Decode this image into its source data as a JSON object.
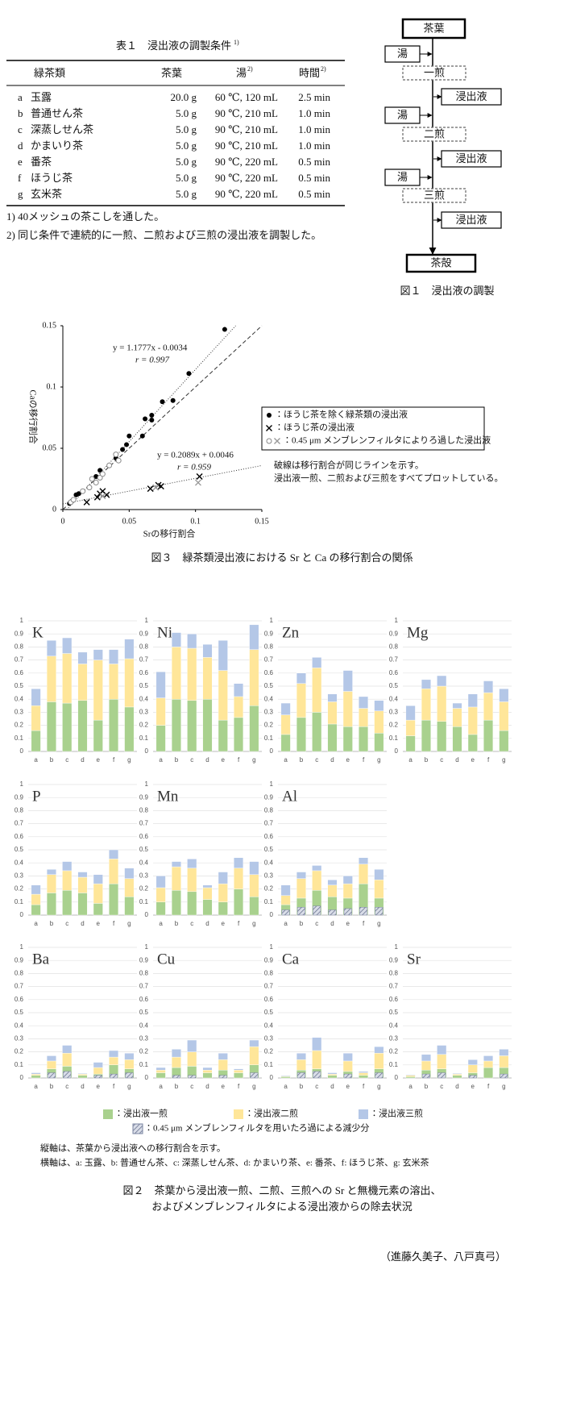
{
  "table": {
    "caption": "表１　浸出液の調製条件",
    "caption_note": "1)",
    "headers": [
      {
        "text": "緑茶類"
      },
      {
        "text": "茶葉"
      },
      {
        "text": "湯",
        "note": "2)"
      },
      {
        "text": "時間",
        "note": "2)"
      }
    ],
    "rows": [
      [
        "a",
        "玉露",
        "20.0 g",
        "60 ℃, 120 mL",
        "2.5 min"
      ],
      [
        "b",
        "普通せん茶",
        "5.0 g",
        "90 ℃, 210 mL",
        "1.0 min"
      ],
      [
        "c",
        "深蒸しせん茶",
        "5.0 g",
        "90 ℃, 210 mL",
        "1.0 min"
      ],
      [
        "d",
        "かまいり茶",
        "5.0 g",
        "90 ℃, 210 mL",
        "1.0 min"
      ],
      [
        "e",
        "番茶",
        "5.0 g",
        "90 ℃, 220 mL",
        "0.5 min"
      ],
      [
        "f",
        "ほうじ茶",
        "5.0 g",
        "90 ℃, 220 mL",
        "0.5 min"
      ],
      [
        "g",
        "玄米茶",
        "5.0 g",
        "90 ℃, 220 mL",
        "0.5 min"
      ]
    ],
    "notes": [
      "1) 40メッシュの茶こしを通した。",
      "2) 同じ条件で連続的に一煎、二煎および三煎の浸出液を調製した。"
    ]
  },
  "diagram": {
    "nodes": [
      "茶葉",
      "湯",
      "一煎",
      "浸出液",
      "湯",
      "二煎",
      "浸出液",
      "湯",
      "三煎",
      "浸出液",
      "茶殻"
    ],
    "caption": "図１　浸出液の調製"
  },
  "chart_data": [
    {
      "type": "scatter",
      "caption": "図３　緑茶類浸出液における Sr と Ca の移行割合の関係",
      "x_label": "Srの移行割合",
      "y_label": "Caの移行割合",
      "xlim": [
        0,
        0.15
      ],
      "ylim": [
        0,
        0.15
      ],
      "xticks": [
        0,
        0.05,
        0.1,
        0.15
      ],
      "yticks": [
        0,
        0.05,
        0.1,
        0.15
      ],
      "series": [
        {
          "name": "：ほうじ茶を除く緑茶類の浸出液",
          "marker": "circle",
          "color": "#000000",
          "x": [
            0.005,
            0.007,
            0.01,
            0.012,
            0.025,
            0.028,
            0.04,
            0.045,
            0.048,
            0.05,
            0.06,
            0.062,
            0.067,
            0.067,
            0.075,
            0.083,
            0.095,
            0.122
          ],
          "y": [
            0.005,
            0.007,
            0.012,
            0.013,
            0.027,
            0.032,
            0.042,
            0.049,
            0.053,
            0.06,
            0.06,
            0.074,
            0.077,
            0.073,
            0.088,
            0.089,
            0.111,
            0.147
          ]
        },
        {
          "name": "：ほうじ茶の浸出液",
          "marker": "cross",
          "color": "#000000",
          "x": [
            0.018,
            0.026,
            0.028,
            0.03,
            0.033,
            0.066,
            0.072,
            0.074,
            0.103
          ],
          "y": [
            0.006,
            0.01,
            0.013,
            0.015,
            0.012,
            0.017,
            0.02,
            0.019,
            0.027
          ]
        },
        {
          "name": "：0.45 μm メンブレンフィルタによりろ過した浸出液",
          "marker": "circle-open",
          "color": "#888888",
          "x": [
            0.006,
            0.008,
            0.015,
            0.02,
            0.022,
            0.025,
            0.028,
            0.03,
            0.035,
            0.04,
            0.042
          ],
          "y": [
            0.006,
            0.008,
            0.015,
            0.018,
            0.025,
            0.022,
            0.026,
            0.029,
            0.036,
            0.045,
            0.04
          ]
        },
        {
          "marker": "cross",
          "color": "#999999",
          "x": [
            0.03,
            0.07,
            0.102
          ],
          "y": [
            0.011,
            0.018,
            0.022
          ]
        }
      ],
      "fits": [
        {
          "equation": "y = 1.1777x - 0.0034",
          "r": "r = 0.997",
          "slope": 1.1777,
          "intercept": -0.0034
        },
        {
          "equation": "y = 0.2089x + 0.0046",
          "r": "r = 0.959",
          "slope": 0.2089,
          "intercept": 0.0046
        }
      ],
      "identity_line": true,
      "notes": [
        "破線は移行割合が同じラインを示す。",
        "浸出液一煎、二煎および三煎をすべてプロットしている。"
      ]
    },
    {
      "type": "bar",
      "stacked": true,
      "title": "K",
      "categories": [
        "a",
        "b",
        "c",
        "d",
        "e",
        "f",
        "g"
      ],
      "ylim": [
        0,
        1
      ],
      "yticks": [
        0,
        0.1,
        0.2,
        0.3,
        0.4,
        0.5,
        0.6,
        0.7,
        0.8,
        0.9,
        1
      ],
      "grid": true,
      "series": [
        {
          "color": "#a9d18e",
          "values": [
            0.16,
            0.38,
            0.37,
            0.39,
            0.24,
            0.4,
            0.34
          ]
        },
        {
          "color": "#ffe699",
          "values": [
            0.19,
            0.35,
            0.38,
            0.28,
            0.46,
            0.27,
            0.37
          ]
        },
        {
          "color": "#b4c7e7",
          "values": [
            0.13,
            0.12,
            0.12,
            0.09,
            0.08,
            0.11,
            0.15
          ]
        }
      ]
    },
    {
      "type": "bar",
      "stacked": true,
      "title": "Ni",
      "categories": [
        "a",
        "b",
        "c",
        "d",
        "e",
        "f",
        "g"
      ],
      "ylim": [
        0,
        1
      ],
      "yticks": [
        0,
        0.1,
        0.2,
        0.3,
        0.4,
        0.5,
        0.6,
        0.7,
        0.8,
        0.9,
        1
      ],
      "grid": true,
      "series": [
        {
          "color": "#a9d18e",
          "values": [
            0.2,
            0.4,
            0.39,
            0.4,
            0.24,
            0.26,
            0.35
          ]
        },
        {
          "color": "#ffe699",
          "values": [
            0.21,
            0.4,
            0.4,
            0.32,
            0.38,
            0.16,
            0.43
          ]
        },
        {
          "color": "#b4c7e7",
          "values": [
            0.2,
            0.11,
            0.11,
            0.1,
            0.23,
            0.1,
            0.19
          ]
        }
      ]
    },
    {
      "type": "bar",
      "stacked": true,
      "title": "Zn",
      "categories": [
        "a",
        "b",
        "c",
        "d",
        "e",
        "f",
        "g"
      ],
      "ylim": [
        0,
        1
      ],
      "yticks": [
        0,
        0.1,
        0.2,
        0.3,
        0.4,
        0.5,
        0.6,
        0.7,
        0.8,
        0.9,
        1
      ],
      "grid": true,
      "series": [
        {
          "color": "#a9d18e",
          "values": [
            0.13,
            0.26,
            0.3,
            0.21,
            0.19,
            0.19,
            0.14
          ]
        },
        {
          "color": "#ffe699",
          "values": [
            0.15,
            0.26,
            0.34,
            0.17,
            0.27,
            0.14,
            0.17
          ]
        },
        {
          "color": "#b4c7e7",
          "values": [
            0.09,
            0.08,
            0.08,
            0.06,
            0.16,
            0.09,
            0.08
          ]
        }
      ]
    },
    {
      "type": "bar",
      "stacked": true,
      "title": "Mg",
      "categories": [
        "a",
        "b",
        "c",
        "d",
        "e",
        "f",
        "g"
      ],
      "ylim": [
        0,
        1
      ],
      "yticks": [
        0,
        0.1,
        0.2,
        0.3,
        0.4,
        0.5,
        0.6,
        0.7,
        0.8,
        0.9,
        1
      ],
      "grid": true,
      "series": [
        {
          "color": "#a9d18e",
          "values": [
            0.12,
            0.24,
            0.23,
            0.19,
            0.13,
            0.24,
            0.16
          ]
        },
        {
          "color": "#ffe699",
          "values": [
            0.12,
            0.24,
            0.27,
            0.14,
            0.21,
            0.21,
            0.22
          ]
        },
        {
          "color": "#b4c7e7",
          "values": [
            0.11,
            0.07,
            0.08,
            0.04,
            0.1,
            0.09,
            0.1
          ]
        }
      ]
    },
    {
      "type": "bar",
      "stacked": true,
      "title": "P",
      "categories": [
        "a",
        "b",
        "c",
        "d",
        "e",
        "f",
        "g"
      ],
      "ylim": [
        0,
        1
      ],
      "yticks": [
        0,
        0.1,
        0.2,
        0.3,
        0.4,
        0.5,
        0.6,
        0.7,
        0.8,
        0.9,
        1
      ],
      "grid": true,
      "series": [
        {
          "color": "#a9d18e",
          "values": [
            0.08,
            0.17,
            0.19,
            0.17,
            0.09,
            0.24,
            0.14
          ]
        },
        {
          "color": "#ffe699",
          "values": [
            0.08,
            0.14,
            0.15,
            0.12,
            0.15,
            0.19,
            0.14
          ]
        },
        {
          "color": "#b4c7e7",
          "values": [
            0.07,
            0.04,
            0.07,
            0.04,
            0.07,
            0.07,
            0.08
          ]
        }
      ]
    },
    {
      "type": "bar",
      "stacked": true,
      "title": "Mn",
      "categories": [
        "a",
        "b",
        "c",
        "d",
        "e",
        "f",
        "g"
      ],
      "ylim": [
        0,
        1
      ],
      "yticks": [
        0,
        0.1,
        0.2,
        0.3,
        0.4,
        0.5,
        0.6,
        0.7,
        0.8,
        0.9,
        1
      ],
      "grid": true,
      "series": [
        {
          "color": "#a9d18e",
          "values": [
            0.1,
            0.19,
            0.18,
            0.12,
            0.1,
            0.2,
            0.14
          ]
        },
        {
          "color": "#ffe699",
          "values": [
            0.11,
            0.18,
            0.18,
            0.09,
            0.14,
            0.16,
            0.17
          ]
        },
        {
          "color": "#b4c7e7",
          "values": [
            0.09,
            0.04,
            0.07,
            0.02,
            0.09,
            0.08,
            0.1
          ]
        }
      ]
    },
    {
      "type": "bar",
      "stacked": true,
      "title": "Al",
      "categories": [
        "a",
        "b",
        "c",
        "d",
        "e",
        "f",
        "g"
      ],
      "ylim": [
        0,
        1
      ],
      "yticks": [
        0,
        0.1,
        0.2,
        0.3,
        0.4,
        0.5,
        0.6,
        0.7,
        0.8,
        0.9,
        1
      ],
      "grid": true,
      "series": [
        {
          "color": "#a9d18e",
          "values": [
            0.08,
            0.13,
            0.19,
            0.14,
            0.13,
            0.24,
            0.13
          ]
        },
        {
          "color": "#ffe699",
          "values": [
            0.07,
            0.15,
            0.15,
            0.09,
            0.11,
            0.15,
            0.14
          ]
        },
        {
          "color": "#b4c7e7",
          "values": [
            0.08,
            0.05,
            0.04,
            0.04,
            0.06,
            0.05,
            0.08
          ]
        },
        {
          "pattern": "hatch",
          "values": [
            0.04,
            0.06,
            0.07,
            0.04,
            0.05,
            0.06,
            0.06
          ]
        }
      ]
    },
    {
      "type": "bar",
      "stacked": true,
      "title": "Ba",
      "categories": [
        "a",
        "b",
        "c",
        "d",
        "e",
        "f",
        "g"
      ],
      "ylim": [
        0,
        1
      ],
      "yticks": [
        0,
        0.1,
        0.2,
        0.3,
        0.4,
        0.5,
        0.6,
        0.7,
        0.8,
        0.9,
        1
      ],
      "grid": true,
      "series": [
        {
          "color": "#a9d18e",
          "values": [
            0.02,
            0.07,
            0.09,
            0.02,
            0.03,
            0.1,
            0.07
          ]
        },
        {
          "color": "#ffe699",
          "values": [
            0.01,
            0.06,
            0.1,
            0.01,
            0.05,
            0.06,
            0.07
          ]
        },
        {
          "color": "#b4c7e7",
          "values": [
            0.01,
            0.04,
            0.06,
            0.005,
            0.04,
            0.05,
            0.05
          ]
        },
        {
          "pattern": "hatch",
          "values": [
            null,
            0.04,
            0.05,
            null,
            0.02,
            0.03,
            0.04
          ]
        }
      ]
    },
    {
      "type": "bar",
      "stacked": true,
      "title": "Cu",
      "categories": [
        "a",
        "b",
        "c",
        "d",
        "e",
        "f",
        "g"
      ],
      "ylim": [
        0,
        1
      ],
      "yticks": [
        0,
        0.1,
        0.2,
        0.3,
        0.4,
        0.5,
        0.6,
        0.7,
        0.8,
        0.9,
        1
      ],
      "grid": true,
      "series": [
        {
          "color": "#a9d18e",
          "values": [
            0.04,
            0.08,
            0.09,
            0.04,
            0.06,
            0.04,
            0.1
          ]
        },
        {
          "color": "#ffe699",
          "values": [
            0.02,
            0.08,
            0.11,
            0.02,
            0.08,
            0.02,
            0.14
          ]
        },
        {
          "color": "#b4c7e7",
          "values": [
            0.02,
            0.06,
            0.09,
            0.02,
            0.05,
            0.01,
            0.05
          ]
        },
        {
          "pattern": "hatch",
          "values": [
            null,
            0.02,
            0.02,
            null,
            0.02,
            null,
            0.04
          ]
        }
      ]
    },
    {
      "type": "bar",
      "stacked": true,
      "title": "Ca",
      "categories": [
        "a",
        "b",
        "c",
        "d",
        "e",
        "f",
        "g"
      ],
      "ylim": [
        0,
        1
      ],
      "yticks": [
        0,
        0.1,
        0.2,
        0.3,
        0.4,
        0.5,
        0.6,
        0.7,
        0.8,
        0.9,
        1
      ],
      "grid": true,
      "series": [
        {
          "color": "#a9d18e",
          "values": [
            0.01,
            0.06,
            0.07,
            0.02,
            0.05,
            0.02,
            0.07
          ]
        },
        {
          "color": "#ffe699",
          "values": [
            0.005,
            0.08,
            0.14,
            0.01,
            0.08,
            0.02,
            0.12
          ]
        },
        {
          "color": "#b4c7e7",
          "values": [
            0.005,
            0.05,
            0.1,
            0.01,
            0.06,
            0.01,
            0.05
          ]
        },
        {
          "pattern": "hatch",
          "values": [
            null,
            0.04,
            0.05,
            null,
            0.03,
            null,
            0.04
          ]
        }
      ]
    },
    {
      "type": "bar",
      "stacked": true,
      "title": "Sr",
      "categories": [
        "a",
        "b",
        "c",
        "d",
        "e",
        "f",
        "g"
      ],
      "ylim": [
        0,
        1
      ],
      "yticks": [
        0,
        0.1,
        0.2,
        0.3,
        0.4,
        0.5,
        0.6,
        0.7,
        0.8,
        0.9,
        1
      ],
      "grid": true,
      "series": [
        {
          "color": "#a9d18e",
          "values": [
            0.01,
            0.06,
            0.07,
            0.02,
            0.04,
            0.08,
            0.08
          ]
        },
        {
          "color": "#ffe699",
          "values": [
            0.01,
            0.07,
            0.11,
            0.01,
            0.06,
            0.05,
            0.09
          ]
        },
        {
          "color": "#b4c7e7",
          "values": [
            0.005,
            0.05,
            0.07,
            0.005,
            0.04,
            0.04,
            0.05
          ]
        },
        {
          "pattern": "hatch",
          "values": [
            null,
            0.03,
            0.04,
            null,
            0.02,
            null,
            0.03
          ]
        }
      ]
    }
  ],
  "figure2": {
    "legend": [
      {
        "name": "：浸出液一煎",
        "color": "#a9d18e"
      },
      {
        "name": "：浸出液二煎",
        "color": "#ffe699"
      },
      {
        "name": "：浸出液三煎",
        "color": "#b4c7e7"
      },
      {
        "name": "：0.45 μm メンブレンフィルタを用いたろ過による減少分",
        "pattern": "hatch"
      }
    ],
    "notes": [
      "縦軸は、茶葉から浸出液への移行割合を示す。",
      "横軸は、a: 玉露、b: 普通せん茶、c: 深蒸しせん茶、d: かまいり茶、e: 番茶、f: ほうじ茶、g: 玄米茶"
    ],
    "caption": [
      "図２　茶葉から浸出液一煎、二煎、三煎への Sr と無機元素の溶出、",
      "およびメンブレンフィルタによる浸出液からの除去状況"
    ]
  },
  "author": "（進藤久美子、八戸真弓）"
}
